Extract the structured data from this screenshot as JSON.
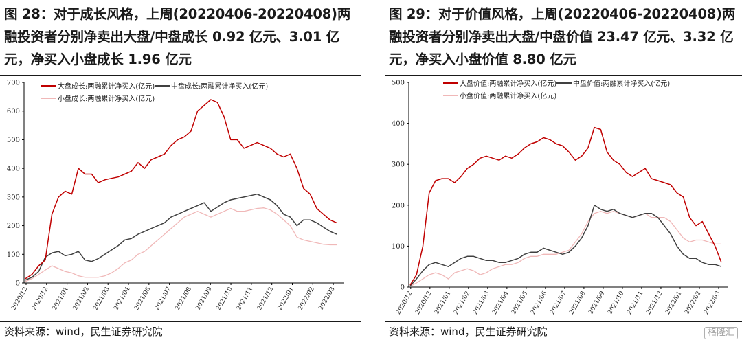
{
  "panels": [
    {
      "title": "图 28：对于成长风格，上周(20220406-20220408)两融投资者分别净卖出大盘/中盘成长 0.92 亿元、3.01 亿元，净买入小盘成长 1.96 亿元",
      "source": "资料来源：wind，民生证券研究院"
    },
    {
      "title": "图 29：对于价值风格，上周(20220406-20220408)两融投资者分别净卖出大盘/中盘价值 23.47 亿元、3.32 亿元，净买入小盘价值 8.80 亿元",
      "source": "资料来源：wind，民生证券研究院"
    }
  ],
  "watermark": "格隆汇",
  "colors": {
    "large": "#c00000",
    "mid": "#404040",
    "small": "#f0b8b8"
  },
  "chart_data": [
    {
      "type": "line",
      "ylim": [
        0,
        700
      ],
      "yticks": [
        0,
        100,
        200,
        300,
        400,
        500,
        600,
        700
      ],
      "xticks": [
        "2020/12",
        "2020/12",
        "2021/01",
        "2021/02",
        "2021/03",
        "2021/04",
        "2021/06",
        "2021/07",
        "2021/08",
        "2021/09",
        "2021/10",
        "2021/11",
        "2021/12",
        "2022/01",
        "2022/02",
        "2022/03"
      ],
      "series": [
        {
          "name": "大盘成长:两融累计净买入(亿元)",
          "key": "large",
          "values": [
            15,
            30,
            60,
            80,
            240,
            300,
            320,
            310,
            400,
            380,
            380,
            350,
            360,
            365,
            370,
            380,
            390,
            420,
            400,
            430,
            440,
            450,
            480,
            500,
            510,
            530,
            600,
            620,
            640,
            630,
            580,
            500,
            500,
            470,
            480,
            490,
            480,
            470,
            450,
            440,
            450,
            400,
            330,
            310,
            260,
            240,
            220,
            210
          ]
        },
        {
          "name": "中盘成长:两融累计净买入(亿元)",
          "key": "mid",
          "values": [
            10,
            20,
            40,
            90,
            105,
            110,
            95,
            100,
            110,
            80,
            75,
            85,
            100,
            115,
            130,
            150,
            155,
            170,
            180,
            190,
            200,
            210,
            230,
            240,
            250,
            260,
            270,
            280,
            250,
            265,
            280,
            290,
            295,
            300,
            305,
            310,
            300,
            290,
            270,
            240,
            230,
            200,
            220,
            220,
            210,
            195,
            180,
            170
          ]
        },
        {
          "name": "小盘成长:两融累计净买入(亿元)",
          "key": "small",
          "values": [
            5,
            15,
            30,
            45,
            60,
            50,
            40,
            35,
            25,
            20,
            20,
            20,
            25,
            35,
            50,
            70,
            80,
            100,
            110,
            130,
            150,
            170,
            190,
            210,
            230,
            240,
            250,
            240,
            230,
            240,
            250,
            260,
            250,
            250,
            255,
            260,
            262,
            255,
            240,
            220,
            200,
            160,
            150,
            145,
            140,
            135,
            133,
            133
          ]
        }
      ]
    },
    {
      "type": "line",
      "ylim": [
        0,
        500
      ],
      "yticks": [
        0,
        100,
        200,
        300,
        400,
        500
      ],
      "xticks": [
        "2020/12",
        "2020/12",
        "2021/01",
        "2021/02",
        "2021/03",
        "2021/04",
        "2021/05",
        "2021/06",
        "2021/07",
        "2021/08",
        "2021/09",
        "2021/10",
        "2021/11",
        "2021/12",
        "2022/01",
        "2022/02",
        "2022/03"
      ],
      "series": [
        {
          "name": "大盘价值:两融累计净买入(亿元)",
          "key": "large",
          "values": [
            5,
            30,
            100,
            230,
            260,
            265,
            265,
            255,
            270,
            290,
            300,
            315,
            320,
            315,
            310,
            320,
            315,
            325,
            340,
            350,
            355,
            365,
            360,
            350,
            345,
            330,
            310,
            320,
            340,
            390,
            385,
            330,
            310,
            300,
            280,
            270,
            280,
            290,
            265,
            260,
            255,
            250,
            230,
            220,
            170,
            150,
            160,
            130,
            100,
            60
          ]
        },
        {
          "name": "中盘价值:两融累计净买入(亿元)",
          "key": "mid",
          "values": [
            3,
            20,
            40,
            55,
            60,
            55,
            50,
            60,
            70,
            75,
            75,
            70,
            65,
            65,
            60,
            60,
            65,
            70,
            80,
            85,
            85,
            95,
            90,
            85,
            80,
            85,
            100,
            120,
            150,
            200,
            190,
            185,
            190,
            180,
            175,
            170,
            175,
            180,
            180,
            170,
            150,
            130,
            100,
            80,
            70,
            70,
            60,
            55,
            55,
            50
          ]
        },
        {
          "name": "小盘价值:两融累计净买入(亿元)",
          "key": "small",
          "values": [
            2,
            10,
            20,
            30,
            35,
            30,
            20,
            35,
            40,
            45,
            40,
            30,
            35,
            45,
            50,
            55,
            55,
            60,
            70,
            75,
            75,
            80,
            80,
            80,
            85,
            90,
            110,
            130,
            160,
            180,
            185,
            180,
            185,
            180,
            175,
            170,
            175,
            180,
            170,
            170,
            170,
            160,
            140,
            120,
            110,
            115,
            115,
            110,
            105,
            105
          ]
        }
      ]
    }
  ]
}
